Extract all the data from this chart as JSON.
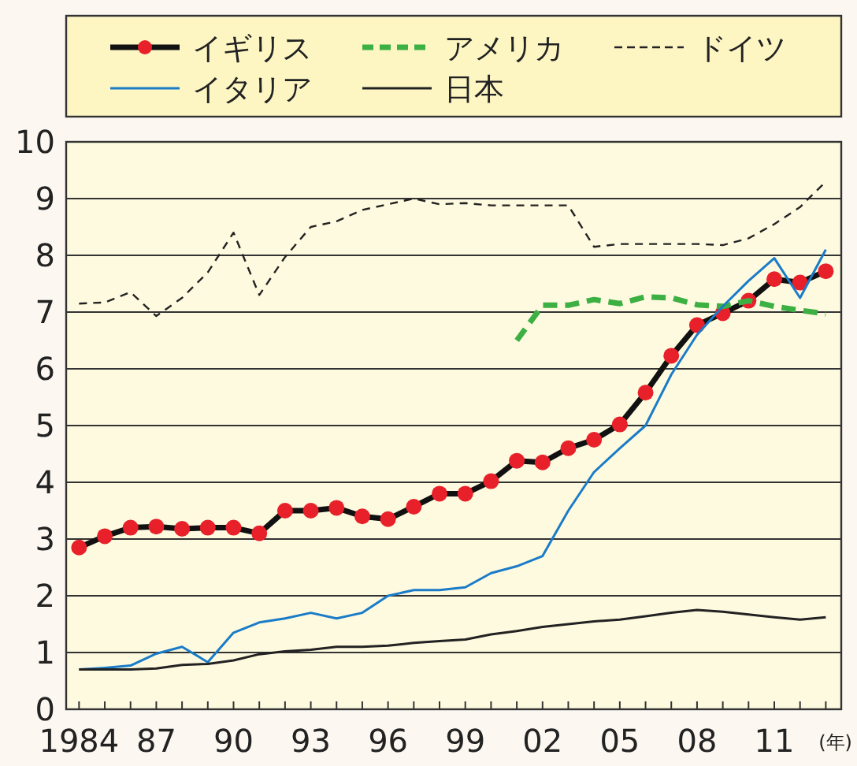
{
  "chart_data": {
    "type": "line",
    "xlabel": "(年)",
    "x": [
      1984,
      1985,
      1986,
      1987,
      1988,
      1989,
      1990,
      1991,
      1992,
      1993,
      1994,
      1995,
      1996,
      1997,
      1998,
      1999,
      2000,
      2001,
      2002,
      2003,
      2004,
      2005,
      2006,
      2007,
      2008,
      2009,
      2010,
      2011,
      2012,
      2013
    ],
    "series": [
      {
        "name": "イギリス",
        "color": "#e8202a",
        "marker": "circle",
        "line_style": "solid",
        "values": [
          2.85,
          3.05,
          3.2,
          3.22,
          3.18,
          3.2,
          3.2,
          3.1,
          3.5,
          3.5,
          3.55,
          3.4,
          3.35,
          3.57,
          3.8,
          3.8,
          4.02,
          4.38,
          4.35,
          4.6,
          4.75,
          5.02,
          5.58,
          6.23,
          6.77,
          6.98,
          7.2,
          7.58,
          7.52,
          7.72
        ]
      },
      {
        "name": "アメリカ",
        "color": "#3cb043",
        "marker": "none",
        "line_style": "dashed",
        "values": [
          null,
          null,
          null,
          null,
          null,
          null,
          null,
          null,
          null,
          null,
          null,
          null,
          null,
          null,
          null,
          null,
          null,
          6.5,
          7.12,
          7.12,
          7.22,
          7.15,
          7.27,
          7.25,
          7.13,
          7.1,
          7.2,
          7.1,
          7.03,
          6.97
        ]
      },
      {
        "name": "ドイツ",
        "color": "#222222",
        "marker": "none",
        "line_style": "dashed",
        "values": [
          7.15,
          7.17,
          7.35,
          6.93,
          7.25,
          7.7,
          8.4,
          7.3,
          7.97,
          8.5,
          8.6,
          8.8,
          8.9,
          9.0,
          8.9,
          8.92,
          8.88,
          8.88,
          8.88,
          8.88,
          8.15,
          8.2,
          8.2,
          8.2,
          8.2,
          8.18,
          8.3,
          8.55,
          8.85,
          9.3
        ]
      },
      {
        "name": "イタリア",
        "color": "#1a7cc8",
        "marker": "none",
        "line_style": "solid",
        "values": [
          0.7,
          0.73,
          0.77,
          0.98,
          1.1,
          0.83,
          1.35,
          1.53,
          1.6,
          1.7,
          1.6,
          1.7,
          2.0,
          2.1,
          2.1,
          2.15,
          2.4,
          2.52,
          2.7,
          3.5,
          4.18,
          4.6,
          5.0,
          5.9,
          6.6,
          7.1,
          7.55,
          7.95,
          7.25,
          8.1
        ]
      },
      {
        "name": "日本",
        "color": "#222222",
        "marker": "none",
        "line_style": "solid",
        "values": [
          0.7,
          0.7,
          0.7,
          0.72,
          0.78,
          0.8,
          0.86,
          0.97,
          1.02,
          1.05,
          1.1,
          1.1,
          1.12,
          1.17,
          1.2,
          1.23,
          1.32,
          1.38,
          1.45,
          1.5,
          1.55,
          1.58,
          1.64,
          1.7,
          1.75,
          1.72,
          1.67,
          1.62,
          1.58,
          1.62
        ]
      }
    ],
    "xlim": [
      1983.5,
      2013.6
    ],
    "xticks": [
      {
        "value": 1984,
        "label": "1984"
      },
      {
        "value": 1985,
        "label": null
      },
      {
        "value": 1986,
        "label": null
      },
      {
        "value": 1987,
        "label": "87"
      },
      {
        "value": 1988,
        "label": null
      },
      {
        "value": 1989,
        "label": null
      },
      {
        "value": 1990,
        "label": "90"
      },
      {
        "value": 1991,
        "label": null
      },
      {
        "value": 1992,
        "label": null
      },
      {
        "value": 1993,
        "label": "93"
      },
      {
        "value": 1994,
        "label": null
      },
      {
        "value": 1995,
        "label": null
      },
      {
        "value": 1996,
        "label": "96"
      },
      {
        "value": 1997,
        "label": null
      },
      {
        "value": 1998,
        "label": null
      },
      {
        "value": 1999,
        "label": "99"
      },
      {
        "value": 2000,
        "label": null
      },
      {
        "value": 2001,
        "label": null
      },
      {
        "value": 2002,
        "label": "02"
      },
      {
        "value": 2003,
        "label": null
      },
      {
        "value": 2004,
        "label": null
      },
      {
        "value": 2005,
        "label": "05"
      },
      {
        "value": 2006,
        "label": null
      },
      {
        "value": 2007,
        "label": null
      },
      {
        "value": 2008,
        "label": "08"
      },
      {
        "value": 2009,
        "label": null
      },
      {
        "value": 2010,
        "label": null
      },
      {
        "value": 2011,
        "label": "11"
      },
      {
        "value": 2012,
        "label": null
      },
      {
        "value": 2013,
        "label": null
      }
    ],
    "ylim": [
      0,
      10
    ],
    "yticks": [
      0,
      1,
      2,
      3,
      4,
      5,
      6,
      7,
      8,
      9,
      10
    ],
    "grid": "y",
    "legend": "top"
  }
}
